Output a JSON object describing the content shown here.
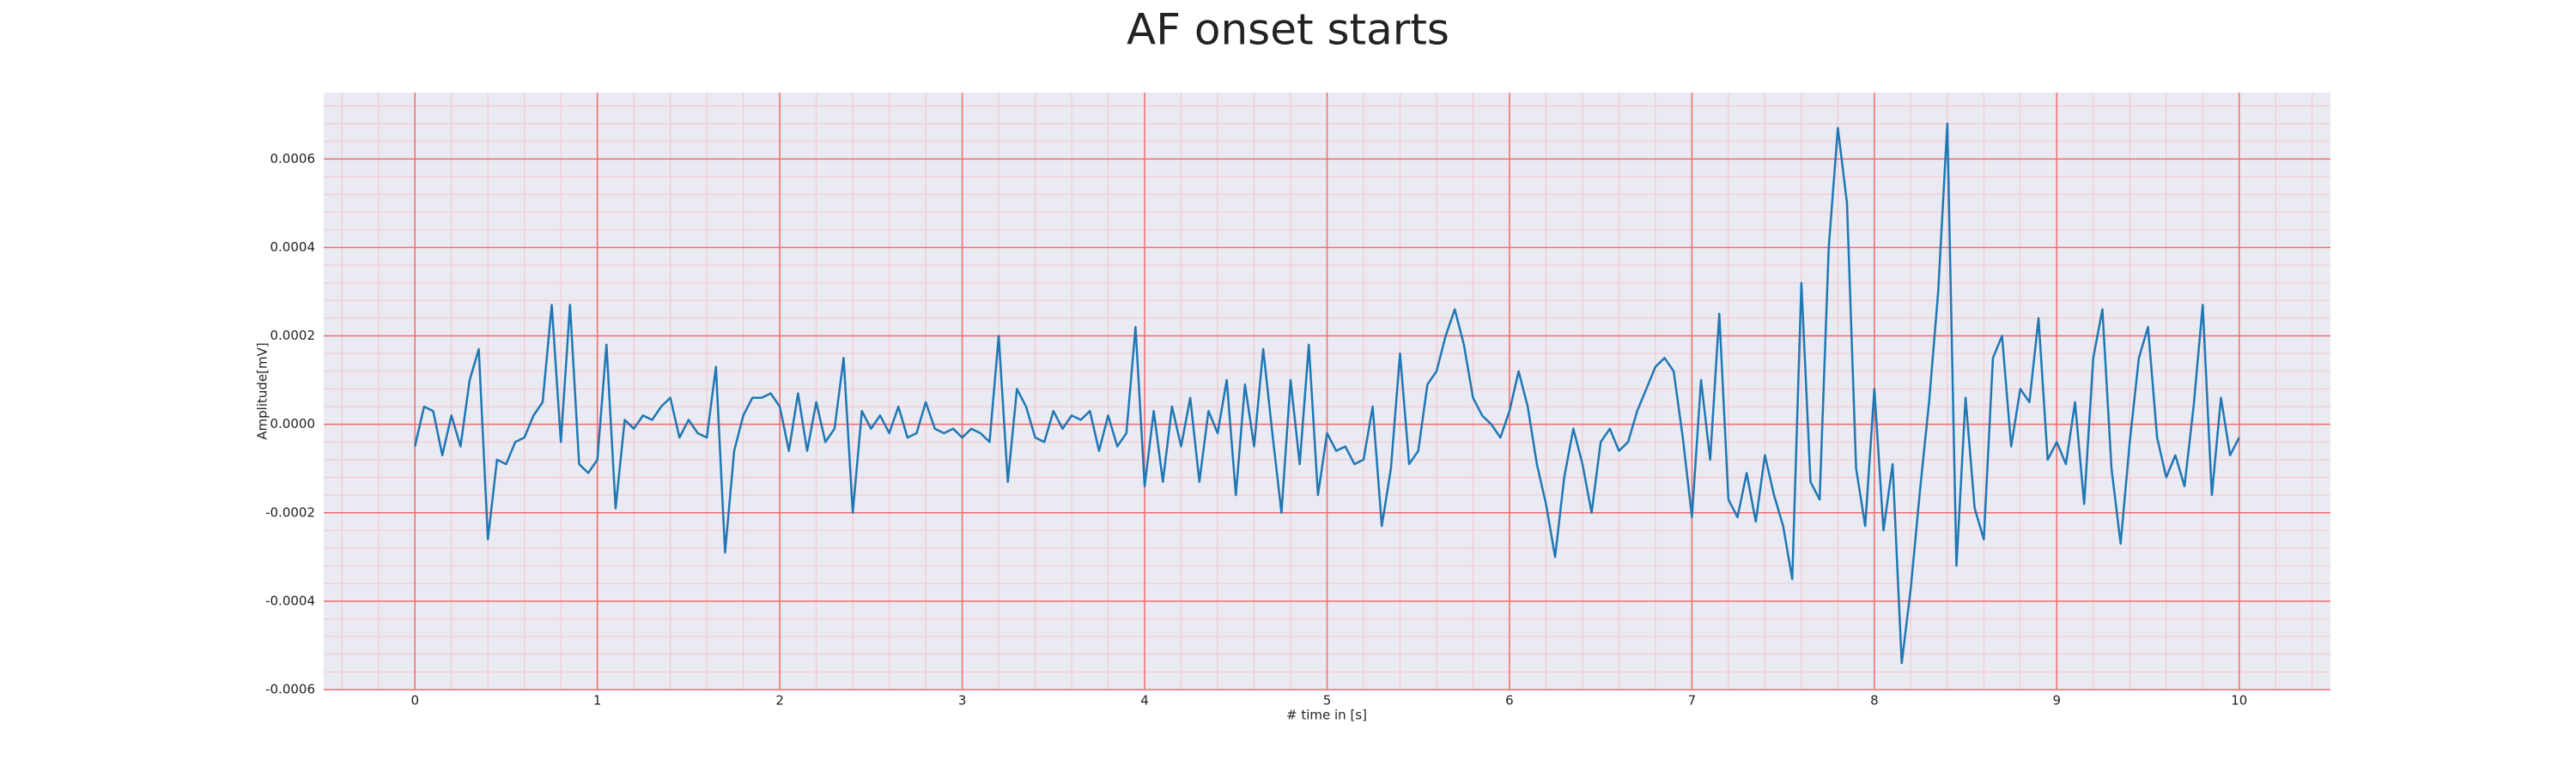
{
  "chart_data": {
    "type": "line",
    "title": "AF onset starts",
    "xlabel": "# time in [s]",
    "ylabel": "Amplitude[mV]",
    "x": [
      0,
      0.05,
      0.1,
      0.15,
      0.2,
      0.25,
      0.3,
      0.35,
      0.4,
      0.45,
      0.5,
      0.55,
      0.6,
      0.65,
      0.7,
      0.75,
      0.8,
      0.85,
      0.9,
      0.95,
      1,
      1.05,
      1.1,
      1.15,
      1.2,
      1.25,
      1.3,
      1.35,
      1.4,
      1.45,
      1.5,
      1.55,
      1.6,
      1.65,
      1.7,
      1.75,
      1.8,
      1.85,
      1.9,
      1.95,
      2,
      2.05,
      2.1,
      2.15,
      2.2,
      2.25,
      2.3,
      2.35,
      2.4,
      2.45,
      2.5,
      2.55,
      2.6,
      2.65,
      2.7,
      2.75,
      2.8,
      2.85,
      2.9,
      2.95,
      3,
      3.05,
      3.1,
      3.15,
      3.2,
      3.25,
      3.3,
      3.35,
      3.4,
      3.45,
      3.5,
      3.55,
      3.6,
      3.65,
      3.7,
      3.75,
      3.8,
      3.85,
      3.9,
      3.95,
      4,
      4.05,
      4.1,
      4.15,
      4.2,
      4.25,
      4.3,
      4.35,
      4.4,
      4.45,
      4.5,
      4.55,
      4.6,
      4.65,
      4.7,
      4.75,
      4.8,
      4.85,
      4.9,
      4.95,
      5,
      5.05,
      5.1,
      5.15,
      5.2,
      5.25,
      5.3,
      5.35,
      5.4,
      5.45,
      5.5,
      5.55,
      5.6,
      5.65,
      5.7,
      5.75,
      5.8,
      5.85,
      5.9,
      5.95,
      6,
      6.05,
      6.1,
      6.15,
      6.2,
      6.25,
      6.3,
      6.35,
      6.4,
      6.45,
      6.5,
      6.55,
      6.6,
      6.65,
      6.7,
      6.75,
      6.8,
      6.85,
      6.9,
      6.95,
      7,
      7.05,
      7.1,
      7.15,
      7.2,
      7.25,
      7.3,
      7.35,
      7.4,
      7.45,
      7.5,
      7.55,
      7.6,
      7.65,
      7.7,
      7.75,
      7.8,
      7.85,
      7.9,
      7.95,
      8,
      8.05,
      8.1,
      8.15,
      8.2,
      8.25,
      8.3,
      8.35,
      8.4,
      8.45,
      8.5,
      8.55,
      8.6,
      8.65,
      8.7,
      8.75,
      8.8,
      8.85,
      8.9,
      8.95,
      9,
      9.05,
      9.1,
      9.15,
      9.2,
      9.25,
      9.3,
      9.35,
      9.4,
      9.45,
      9.5,
      9.55,
      9.6,
      9.65,
      9.7,
      9.75,
      9.8,
      9.85,
      9.9,
      9.95,
      10
    ],
    "series": [
      {
        "color": "#1f77b4",
        "values": [
          -5e-05,
          4e-05,
          3e-05,
          -7e-05,
          2e-05,
          -5e-05,
          0.0001,
          0.00017,
          -0.00026,
          -8e-05,
          -9e-05,
          -4e-05,
          -3e-05,
          2e-05,
          5e-05,
          0.00027,
          -4e-05,
          0.00027,
          -9e-05,
          -0.00011,
          -8e-05,
          0.00018,
          -0.00019,
          1e-05,
          -1e-05,
          2e-05,
          1e-05,
          4e-05,
          6e-05,
          -3e-05,
          1e-05,
          -2e-05,
          -3e-05,
          0.00013,
          -0.00029,
          -6e-05,
          2e-05,
          6e-05,
          6e-05,
          7e-05,
          4e-05,
          -6e-05,
          7e-05,
          -6e-05,
          5e-05,
          -4e-05,
          -1e-05,
          0.00015,
          -0.0002,
          3e-05,
          -1e-05,
          2e-05,
          -2e-05,
          4e-05,
          -3e-05,
          -2e-05,
          5e-05,
          -1e-05,
          -2e-05,
          -1e-05,
          -3e-05,
          -1e-05,
          -2e-05,
          -4e-05,
          0.0002,
          -0.00013,
          8e-05,
          4e-05,
          -3e-05,
          -4e-05,
          3e-05,
          -1e-05,
          2e-05,
          1e-05,
          3e-05,
          -6e-05,
          2e-05,
          -5e-05,
          -2e-05,
          0.00022,
          -0.00014,
          3e-05,
          -0.00013,
          4e-05,
          -5e-05,
          6e-05,
          -0.00013,
          3e-05,
          -2e-05,
          0.0001,
          -0.00016,
          9e-05,
          -5e-05,
          0.00017,
          -2e-05,
          -0.0002,
          0.0001,
          -9e-05,
          0.00018,
          -0.00016,
          -2e-05,
          -6e-05,
          -5e-05,
          -9e-05,
          -8e-05,
          4e-05,
          -0.00023,
          -0.0001,
          0.00016,
          -9e-05,
          -6e-05,
          9e-05,
          0.00012,
          0.0002,
          0.00026,
          0.00018,
          6e-05,
          2e-05,
          0,
          -3e-05,
          3e-05,
          0.00012,
          4e-05,
          -9e-05,
          -0.00018,
          -0.0003,
          -0.00012,
          -1e-05,
          -9e-05,
          -0.0002,
          -4e-05,
          -1e-05,
          -6e-05,
          -4e-05,
          3e-05,
          8e-05,
          0.00013,
          0.00015,
          0.00012,
          -3e-05,
          -0.00021,
          0.0001,
          -8e-05,
          0.00025,
          -0.00017,
          -0.00021,
          -0.00011,
          -0.00022,
          -7e-05,
          -0.00016,
          -0.00023,
          -0.00035,
          0.00032,
          -0.00013,
          -0.00017,
          0.0004,
          0.00067,
          0.0005,
          -0.0001,
          -0.00023,
          8e-05,
          -0.00024,
          -9e-05,
          -0.00054,
          -0.00037,
          -0.00015,
          5e-05,
          0.0003,
          0.00068,
          -0.00032,
          6e-05,
          -0.00019,
          -0.00026,
          0.00015,
          0.0002,
          -5e-05,
          8e-05,
          5e-05,
          0.00024,
          -8e-05,
          -4e-05,
          -9e-05,
          5e-05,
          -0.00018,
          0.00015,
          0.00026,
          -0.0001,
          -0.00027,
          -4e-05,
          0.00015,
          0.00022,
          -3e-05,
          -0.00012,
          -7e-05,
          -0.00014,
          4e-05,
          0.00027,
          -0.00016,
          6e-05,
          -7e-05,
          -3e-05
        ]
      }
    ],
    "xlim": [
      -0.5,
      10.5
    ],
    "xticks": [
      0,
      1,
      2,
      3,
      4,
      5,
      6,
      7,
      8,
      9,
      10
    ],
    "ylim": [
      -0.0006,
      0.00075
    ],
    "yticks": [
      -0.0006,
      -0.0004,
      -0.0002,
      {
        "value": 0,
        "label": "0.0000"
      },
      0.0002,
      0.0004,
      0.0006
    ],
    "grid": true,
    "minor_grid": true,
    "grid_color": "#f26b6b",
    "minor_grid_color": "#f5c4cc",
    "background": "#eaeaf2"
  }
}
